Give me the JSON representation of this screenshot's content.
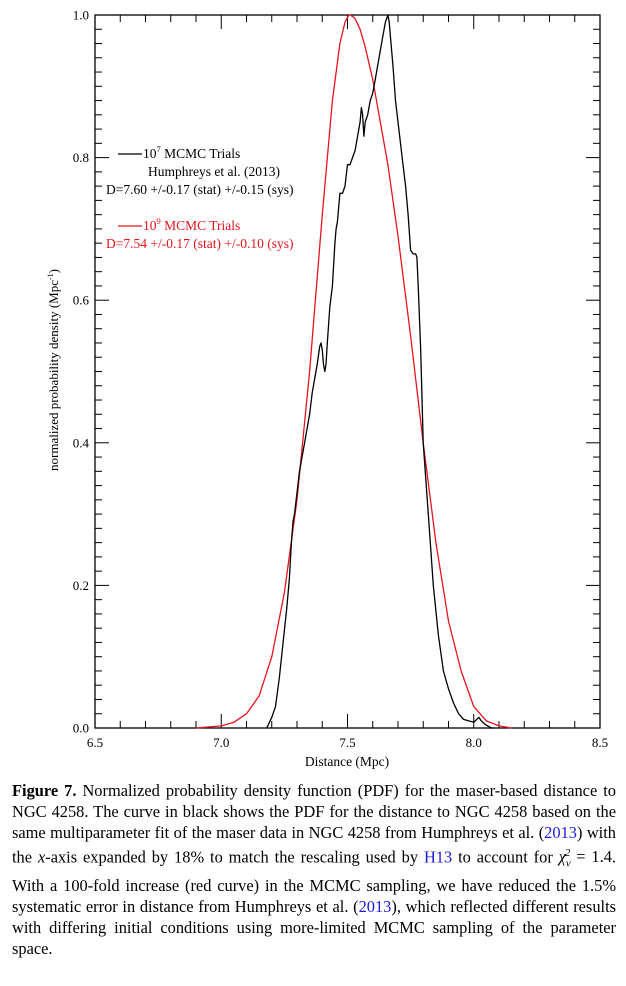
{
  "chart_data": {
    "type": "line",
    "xlabel": "Distance (Mpc)",
    "ylabel_main": "normalized probability density (Mpc",
    "ylabel_sup": "-1",
    "ylabel_close": ")",
    "xlim": [
      6.5,
      8.5
    ],
    "ylim": [
      0.0,
      1.0
    ],
    "x_ticks": [
      "6.5",
      "7.0",
      "7.5",
      "8.0",
      "8.5"
    ],
    "y_ticks": [
      "0.0",
      "0.2",
      "0.4",
      "0.6",
      "0.8",
      "1.0"
    ],
    "grid": false,
    "legend": [
      {
        "color": "#000000",
        "trials_pre": "10",
        "trials_sup": "7",
        "trials_post": " MCMC Trials",
        "line2": "Humphreys et al. (2013)",
        "line3": "D=7.60 +/-0.17 (stat) +/-0.15 (sys)"
      },
      {
        "color": "#e8141c",
        "trials_pre": "10",
        "trials_sup": "9",
        "trials_post": " MCMC Trials",
        "line3": "D=7.54 +/-0.17 (stat) +/-0.10 (sys)"
      }
    ],
    "series": [
      {
        "color": "#000000",
        "x": [
          7.18,
          7.2,
          7.215,
          7.23,
          7.245,
          7.26,
          7.27,
          7.278,
          7.284,
          7.29,
          7.3,
          7.31,
          7.33,
          7.35,
          7.36,
          7.37,
          7.38,
          7.39,
          7.395,
          7.4,
          7.405,
          7.41,
          7.415,
          7.42,
          7.43,
          7.44,
          7.45,
          7.455,
          7.46,
          7.47,
          7.48,
          7.49,
          7.5,
          7.51,
          7.52,
          7.53,
          7.54,
          7.55,
          7.555,
          7.56,
          7.565,
          7.57,
          7.58,
          7.59,
          7.6,
          7.61,
          7.62,
          7.63,
          7.64,
          7.65,
          7.66,
          7.665,
          7.67,
          7.68,
          7.69,
          7.7,
          7.71,
          7.72,
          7.73,
          7.74,
          7.75,
          7.76,
          7.765,
          7.77,
          7.775,
          7.78,
          7.79,
          7.8,
          7.82,
          7.84,
          7.86,
          7.88,
          7.9,
          7.92,
          7.94,
          7.96,
          7.98,
          8.0,
          8.02,
          8.03,
          8.045,
          8.06,
          8.07,
          8.08
        ],
        "y": [
          0.0,
          0.015,
          0.03,
          0.07,
          0.12,
          0.17,
          0.21,
          0.26,
          0.29,
          0.3,
          0.33,
          0.36,
          0.4,
          0.44,
          0.47,
          0.49,
          0.51,
          0.535,
          0.54,
          0.53,
          0.51,
          0.5,
          0.51,
          0.54,
          0.59,
          0.62,
          0.68,
          0.7,
          0.71,
          0.75,
          0.75,
          0.76,
          0.79,
          0.79,
          0.8,
          0.81,
          0.83,
          0.85,
          0.87,
          0.86,
          0.83,
          0.85,
          0.86,
          0.88,
          0.89,
          0.91,
          0.93,
          0.95,
          0.97,
          0.99,
          1.0,
          0.99,
          0.97,
          0.93,
          0.88,
          0.85,
          0.82,
          0.79,
          0.76,
          0.72,
          0.67,
          0.665,
          0.665,
          0.665,
          0.66,
          0.62,
          0.53,
          0.4,
          0.3,
          0.2,
          0.13,
          0.08,
          0.055,
          0.035,
          0.02,
          0.012,
          0.01,
          0.008,
          0.015,
          0.01,
          0.005,
          0.002,
          0.0,
          0.0
        ]
      },
      {
        "color": "#e8141c",
        "x": [
          6.9,
          7.0,
          7.05,
          7.1,
          7.15,
          7.2,
          7.25,
          7.3,
          7.35,
          7.4,
          7.44,
          7.47,
          7.49,
          7.505,
          7.51,
          7.52,
          7.53,
          7.55,
          7.57,
          7.6,
          7.63,
          7.66,
          7.7,
          7.75,
          7.8,
          7.85,
          7.9,
          7.95,
          8.0,
          8.05,
          8.1,
          8.15
        ],
        "y": [
          0.0,
          0.003,
          0.008,
          0.02,
          0.045,
          0.1,
          0.19,
          0.32,
          0.5,
          0.72,
          0.88,
          0.96,
          0.99,
          1.0,
          1.0,
          0.998,
          0.995,
          0.98,
          0.955,
          0.91,
          0.85,
          0.79,
          0.69,
          0.55,
          0.4,
          0.26,
          0.15,
          0.08,
          0.03,
          0.01,
          0.003,
          0.0
        ]
      }
    ]
  },
  "caption": {
    "label": "Figure 7.",
    "t1": " Normalized probability density function (PDF) for the maser-based distance to NGC 4258. The curve in black shows the PDF for the distance to NGC 4258 based on the same multiparameter fit of the maser data in NGC 4258 from Humphreys et al. (",
    "y1": "2013",
    "t2": ") with the ",
    "axis_word": "x",
    "t3": "-axis expanded by 18% to match the rescaling used by ",
    "ref": "H13",
    "t4": " to account for ",
    "chi_sym": "χ",
    "chi_sub": "ν",
    "chi_sup": "2",
    "chi_val": " = 1.4",
    "t5": ". With a 100-fold increase (red curve) in the MCMC sampling, we have reduced the 1.5% systematic error in distance from Humphreys et al. (",
    "y2": "2013",
    "t6": "), which reflected different results with differing initial conditions using more-limited MCMC sampling of the parameter space."
  }
}
